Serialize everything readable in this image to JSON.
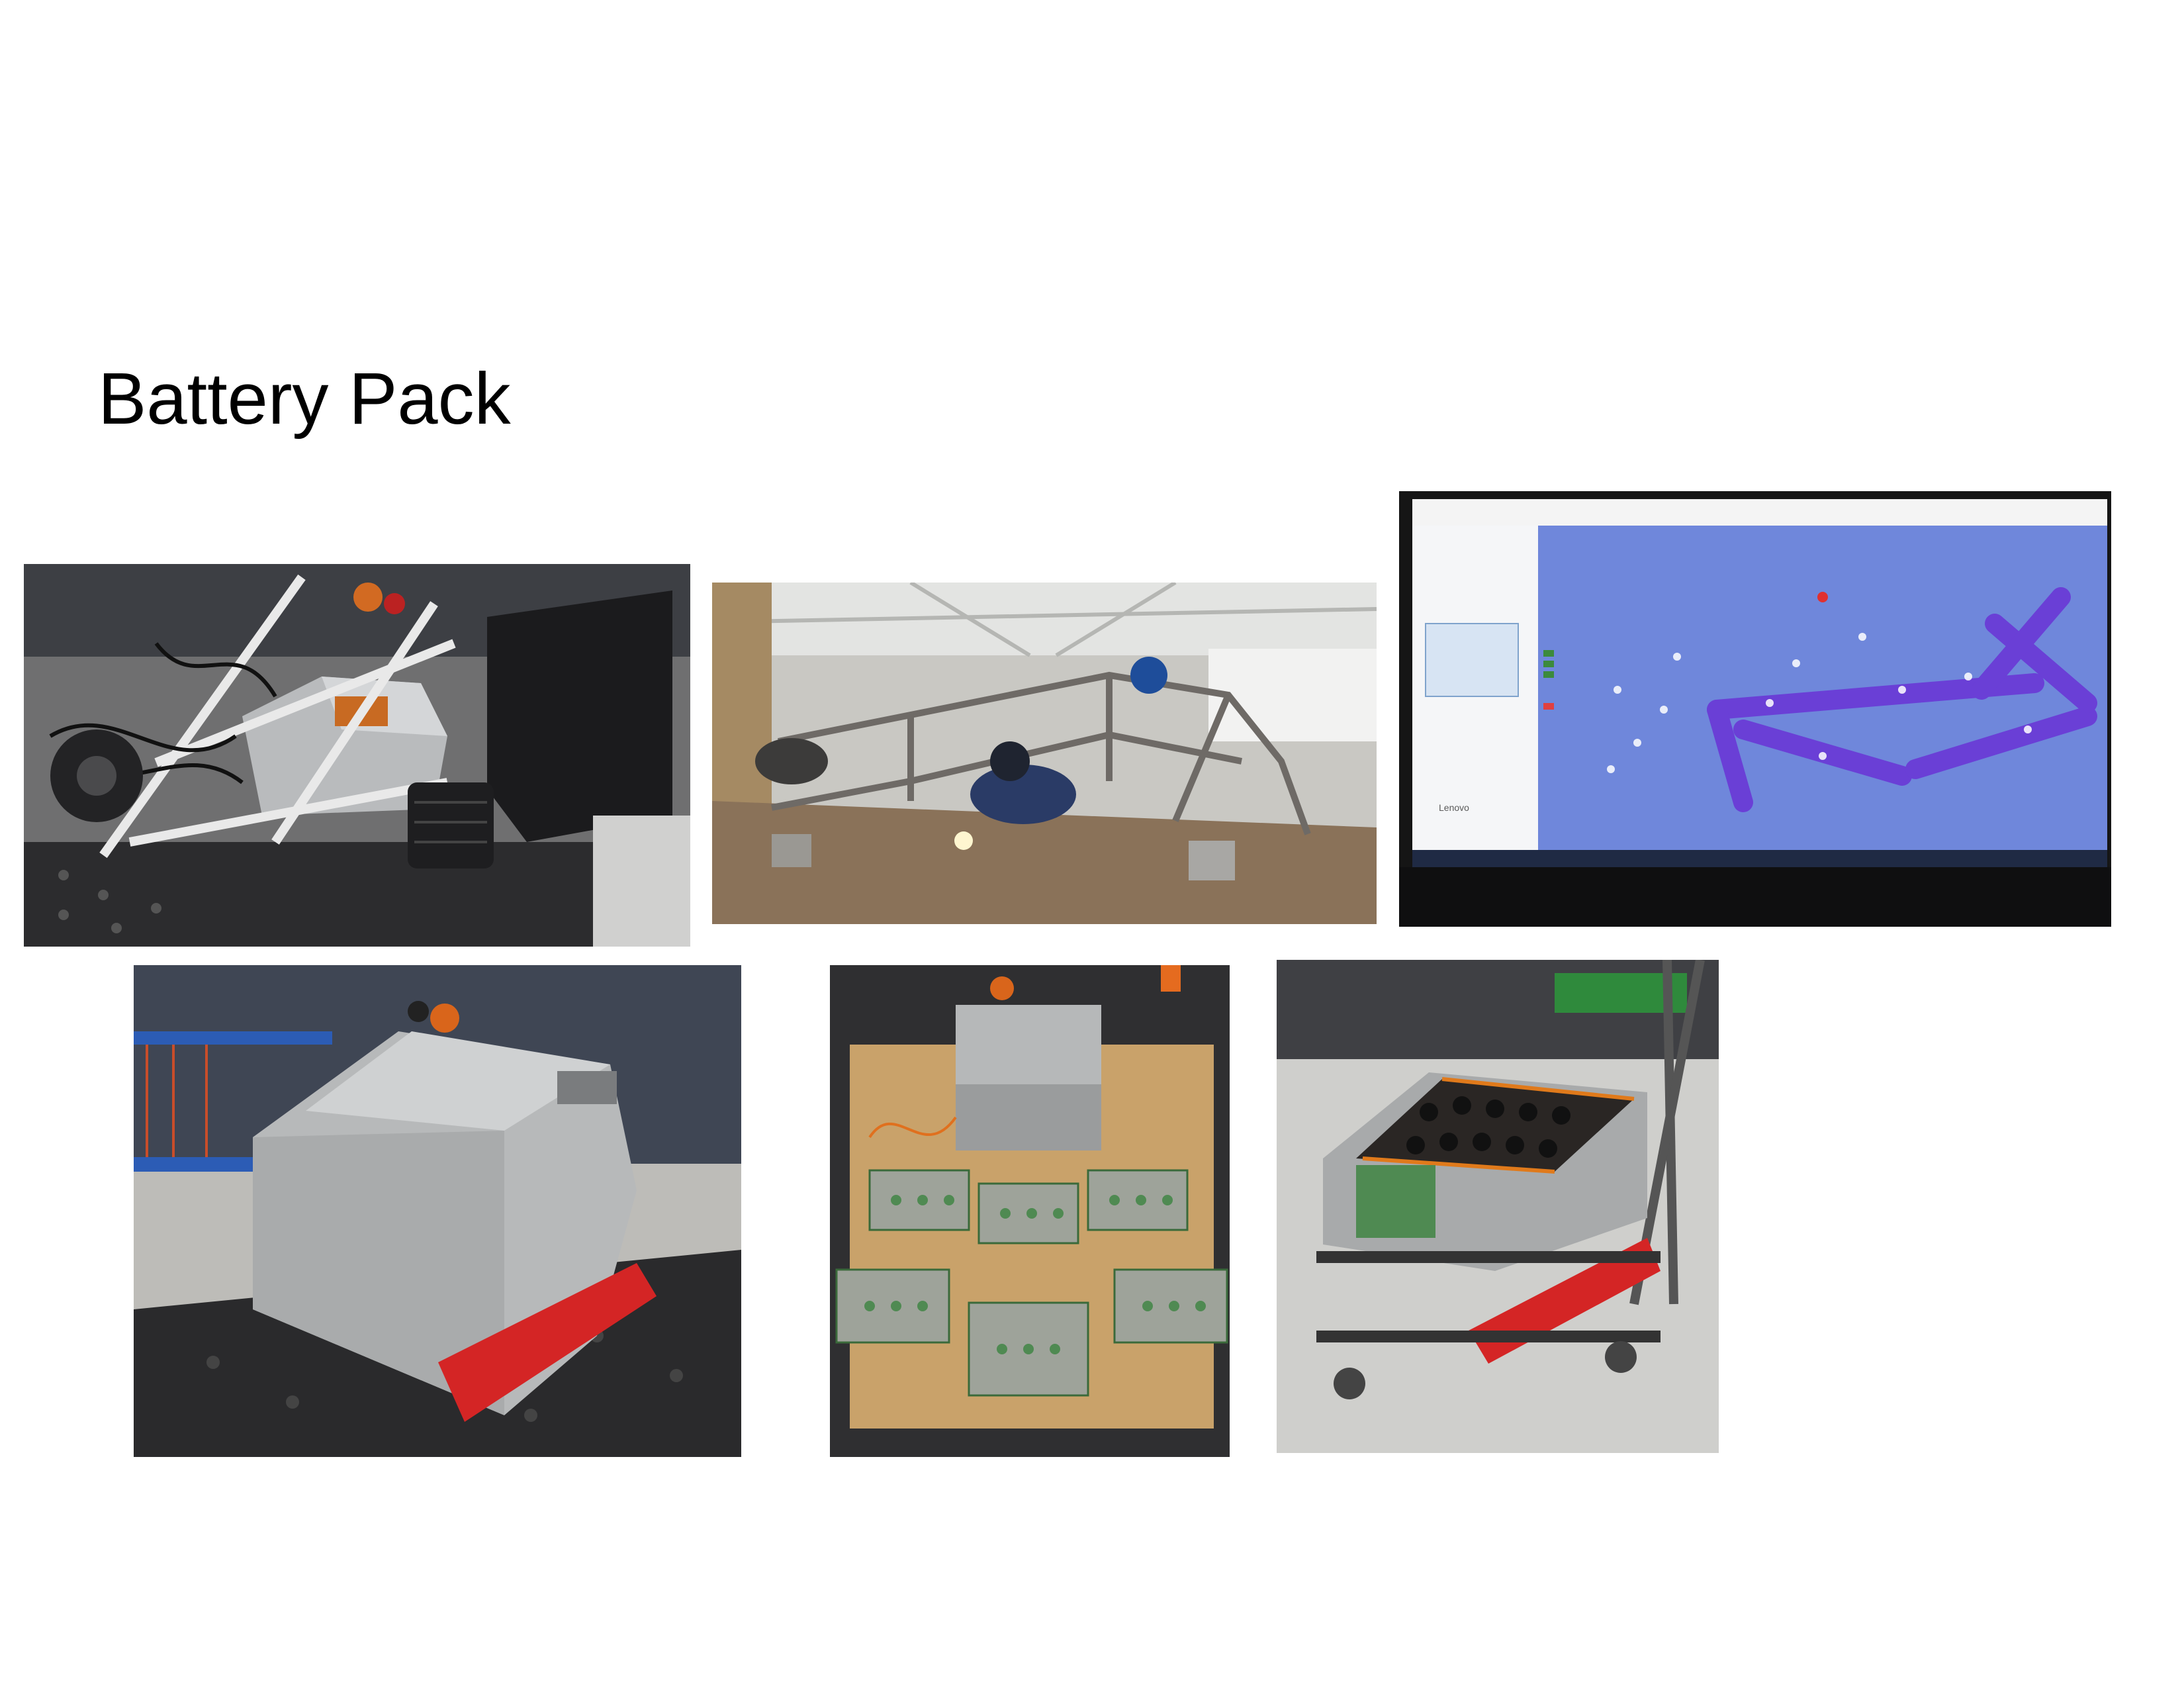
{
  "slide": {
    "title": "Battery Pack"
  },
  "photos": [
    {
      "subject": "Vehicle chassis with mounted battery box",
      "interactable": false
    },
    {
      "subject": "Welding the tube frame in workshop",
      "interactable": false
    },
    {
      "subject": "3D scan of frame on laptop screen",
      "interactable": false
    },
    {
      "subject": "Aluminum battery enclosure on welding table",
      "interactable": false
    },
    {
      "subject": "Battery modules laid out on plywood",
      "interactable": false
    },
    {
      "subject": "Open battery pack on cart",
      "interactable": false
    }
  ],
  "screen_text": {
    "status_bar": "Lenovo"
  }
}
